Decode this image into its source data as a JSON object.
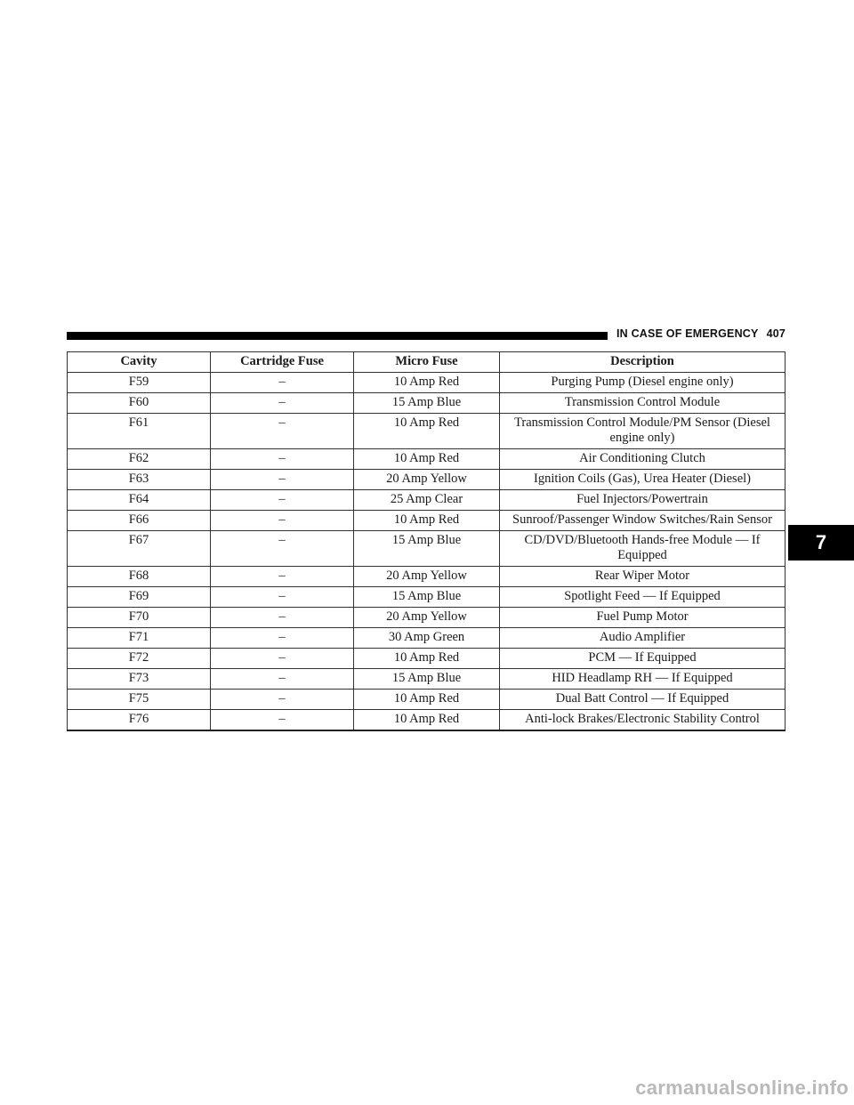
{
  "header": {
    "section_title": "IN CASE OF EMERGENCY",
    "page_number": "407"
  },
  "chapter_tab": "7",
  "table": {
    "columns": [
      "Cavity",
      "Cartridge Fuse",
      "Micro Fuse",
      "Description"
    ],
    "rows": [
      {
        "cavity": "F59",
        "cartridge": "–",
        "micro": "10 Amp Red",
        "description": "Purging Pump (Diesel engine only)"
      },
      {
        "cavity": "F60",
        "cartridge": "–",
        "micro": "15 Amp Blue",
        "description": "Transmission Control Module"
      },
      {
        "cavity": "F61",
        "cartridge": "–",
        "micro": "10 Amp Red",
        "description": "Transmission Control Module/PM Sensor (Diesel engine only)"
      },
      {
        "cavity": "F62",
        "cartridge": "–",
        "micro": "10 Amp Red",
        "description": "Air Conditioning Clutch"
      },
      {
        "cavity": "F63",
        "cartridge": "–",
        "micro": "20 Amp Yellow",
        "description": "Ignition Coils (Gas), Urea Heater (Diesel)"
      },
      {
        "cavity": "F64",
        "cartridge": "–",
        "micro": "25 Amp Clear",
        "description": "Fuel Injectors/Powertrain"
      },
      {
        "cavity": "F66",
        "cartridge": "–",
        "micro": "10 Amp Red",
        "description": "Sunroof/Passenger Window Switches/Rain Sensor"
      },
      {
        "cavity": "F67",
        "cartridge": "–",
        "micro": "15 Amp Blue",
        "description": "CD/DVD/Bluetooth Hands-free Module — If Equipped"
      },
      {
        "cavity": "F68",
        "cartridge": "–",
        "micro": "20 Amp Yellow",
        "description": "Rear Wiper Motor"
      },
      {
        "cavity": "F69",
        "cartridge": "–",
        "micro": "15 Amp Blue",
        "description": "Spotlight Feed — If Equipped"
      },
      {
        "cavity": "F70",
        "cartridge": "–",
        "micro": "20 Amp Yellow",
        "description": "Fuel Pump Motor"
      },
      {
        "cavity": "F71",
        "cartridge": "–",
        "micro": "30 Amp Green",
        "description": "Audio Amplifier"
      },
      {
        "cavity": "F72",
        "cartridge": "–",
        "micro": "10 Amp Red",
        "description": "PCM — If Equipped"
      },
      {
        "cavity": "F73",
        "cartridge": "–",
        "micro": "15 Amp Blue",
        "description": "HID Headlamp RH — If Equipped"
      },
      {
        "cavity": "F75",
        "cartridge": "–",
        "micro": "10 Amp Red",
        "description": "Dual Batt Control — If Equipped"
      },
      {
        "cavity": "F76",
        "cartridge": "–",
        "micro": "10 Amp Red",
        "description": "Anti-lock Brakes/Electronic Stability Control"
      }
    ]
  },
  "watermark": "carmanualsonline.info"
}
